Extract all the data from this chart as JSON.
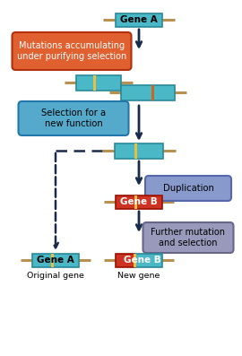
{
  "bg_color": "#ffffff",
  "gene_a_label": "Gene A",
  "gene_b_label": "Gene B",
  "mutations_label": "Mutations accumulating\nunder purifying selection",
  "selection_label": "Selection for a\nnew function",
  "duplication_label": "Duplication",
  "further_label": "Further mutation\nand selection",
  "original_label": "Original gene",
  "new_label": "New gene",
  "col_teal": "#4bb8c8",
  "col_teal_dark": "#2a8898",
  "col_teal_light": "#6ed0de",
  "col_red": "#cc3322",
  "col_red_dark": "#991100",
  "col_orange_box": "#e06030",
  "col_orange_box_dark": "#b03010",
  "col_blue_box": "#55aacc",
  "col_blue_box_dark": "#2277aa",
  "col_purple_box": "#8899cc",
  "col_purple_box_dark": "#5566aa",
  "col_gray_box": "#9999bb",
  "col_gray_box_dark": "#666688",
  "col_chrom": "#b89050",
  "col_stripe_yellow": "#e8c040",
  "col_stripe_orange": "#c86820",
  "col_arrow": "#1a2a4a",
  "figw": 2.7,
  "figh": 3.97,
  "dpi": 100
}
